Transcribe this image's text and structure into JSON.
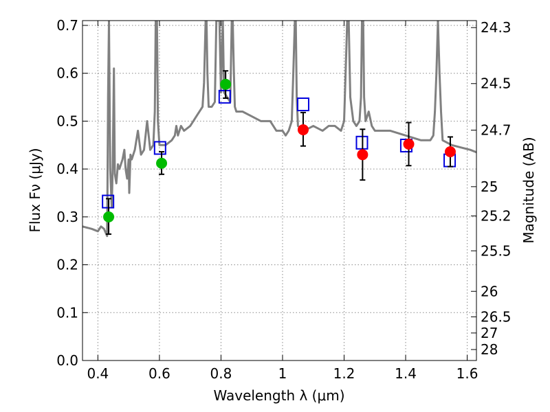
{
  "chart_data": {
    "type": "scatter",
    "title": "",
    "xlabel": "Wavelength  λ (μm)",
    "ylabel": "Flux  Fν  (μJy)",
    "ylabel_right": "Magnitude (AB)",
    "xlim": [
      0.35,
      1.63
    ],
    "ylim": [
      0.0,
      0.71
    ],
    "grid": true,
    "x_ticks": [
      0.4,
      0.6,
      0.8,
      1.0,
      1.2,
      1.4,
      1.6
    ],
    "x_tick_labels": [
      "0.4",
      "0.6",
      "0.8",
      "1",
      "1.2",
      "1.4",
      "1.6"
    ],
    "y_ticks": [
      0.0,
      0.1,
      0.2,
      0.3,
      0.4,
      0.5,
      0.6,
      0.7
    ],
    "y_tick_labels": [
      "0.0",
      "0.1",
      "0.2",
      "0.3",
      "0.4",
      "0.5",
      "0.6",
      "0.7"
    ],
    "right_ticks": [
      {
        "label": "24.3",
        "flux": 0.6954
      },
      {
        "label": "24.5",
        "flux": 0.5784
      },
      {
        "label": "24.7",
        "flux": 0.4812
      },
      {
        "label": "25",
        "flux": 0.3631
      },
      {
        "label": "25.2",
        "flux": 0.302
      },
      {
        "label": "25.5",
        "flux": 0.2291
      },
      {
        "label": "26",
        "flux": 0.1445
      },
      {
        "label": "26.5",
        "flux": 0.0912
      },
      {
        "label": "27",
        "flux": 0.0575
      },
      {
        "label": "28",
        "flux": 0.0229
      }
    ],
    "colors": {
      "model": "#808080",
      "green": "#00bb00",
      "red": "#ff0000",
      "square": "#0000dd",
      "error": "#000000"
    },
    "series": [
      {
        "kind": "line",
        "color": "#808080",
        "x": [
          0.35,
          0.38,
          0.4,
          0.41,
          0.42,
          0.43,
          0.431,
          0.433,
          0.436,
          0.44,
          0.445,
          0.448,
          0.452,
          0.455,
          0.46,
          0.465,
          0.47,
          0.48,
          0.486,
          0.49,
          0.495,
          0.5,
          0.502,
          0.506,
          0.51,
          0.52,
          0.53,
          0.54,
          0.55,
          0.56,
          0.57,
          0.58,
          0.585,
          0.588,
          0.59,
          0.592,
          0.595,
          0.6,
          0.62,
          0.64,
          0.65,
          0.655,
          0.66,
          0.665,
          0.67,
          0.68,
          0.7,
          0.72,
          0.74,
          0.745,
          0.75,
          0.753,
          0.756,
          0.76,
          0.77,
          0.78,
          0.785,
          0.79,
          0.795,
          0.8,
          0.803,
          0.806,
          0.81,
          0.82,
          0.83,
          0.835,
          0.838,
          0.842,
          0.845,
          0.85,
          0.87,
          0.9,
          0.93,
          0.96,
          0.98,
          1.0,
          1.01,
          1.02,
          1.03,
          1.035,
          1.04,
          1.043,
          1.046,
          1.05,
          1.07,
          1.1,
          1.13,
          1.15,
          1.17,
          1.19,
          1.2,
          1.205,
          1.21,
          1.215,
          1.22,
          1.23,
          1.24,
          1.25,
          1.255,
          1.258,
          1.262,
          1.265,
          1.27,
          1.28,
          1.29,
          1.3,
          1.35,
          1.4,
          1.45,
          1.48,
          1.49,
          1.495,
          1.5,
          1.505,
          1.51,
          1.515,
          1.52,
          1.55,
          1.58,
          1.61,
          1.63
        ],
        "y": [
          0.28,
          0.275,
          0.27,
          0.28,
          0.275,
          0.26,
          0.35,
          0.55,
          0.71,
          0.4,
          0.32,
          0.4,
          0.61,
          0.39,
          0.37,
          0.41,
          0.4,
          0.42,
          0.44,
          0.4,
          0.38,
          0.42,
          0.35,
          0.43,
          0.42,
          0.44,
          0.48,
          0.43,
          0.44,
          0.5,
          0.44,
          0.45,
          0.52,
          0.71,
          0.71,
          0.71,
          0.5,
          0.45,
          0.45,
          0.46,
          0.47,
          0.49,
          0.47,
          0.48,
          0.49,
          0.48,
          0.49,
          0.51,
          0.53,
          0.58,
          0.71,
          0.71,
          0.6,
          0.53,
          0.53,
          0.54,
          0.71,
          0.71,
          0.71,
          0.56,
          0.65,
          0.71,
          0.56,
          0.55,
          0.54,
          0.71,
          0.71,
          0.6,
          0.53,
          0.52,
          0.52,
          0.51,
          0.5,
          0.5,
          0.48,
          0.48,
          0.47,
          0.48,
          0.5,
          0.6,
          0.71,
          0.71,
          0.55,
          0.49,
          0.48,
          0.49,
          0.48,
          0.49,
          0.49,
          0.48,
          0.5,
          0.6,
          0.71,
          0.71,
          0.55,
          0.5,
          0.49,
          0.5,
          0.55,
          0.71,
          0.71,
          0.55,
          0.5,
          0.52,
          0.49,
          0.48,
          0.48,
          0.47,
          0.46,
          0.46,
          0.47,
          0.52,
          0.6,
          0.71,
          0.6,
          0.52,
          0.46,
          0.45,
          0.445,
          0.44,
          0.435
        ]
      },
      {
        "kind": "circles",
        "color": "#00bb00",
        "x": [
          0.435,
          0.607,
          0.815
        ],
        "y": [
          0.3,
          0.412,
          0.577
        ]
      },
      {
        "kind": "circles",
        "color": "#ff0000",
        "x": [
          1.067,
          1.26,
          1.41,
          1.545
        ],
        "y": [
          0.482,
          0.43,
          0.452,
          0.436
        ]
      },
      {
        "kind": "squares",
        "color": "#0000dd",
        "x": [
          0.433,
          0.602,
          0.812,
          1.067,
          1.258,
          1.402,
          1.543
        ],
        "y": [
          0.332,
          0.444,
          0.551,
          0.535,
          0.455,
          0.449,
          0.418
        ]
      },
      {
        "kind": "errorbars",
        "color": "#000000",
        "x": [
          0.435,
          0.607,
          0.815,
          1.067,
          1.26,
          1.41,
          1.545
        ],
        "y": [
          0.3,
          0.412,
          0.577,
          0.482,
          0.43,
          0.452,
          0.436
        ],
        "low": [
          0.264,
          0.389,
          0.548,
          0.448,
          0.377,
          0.407,
          0.405
        ],
        "high": [
          0.338,
          0.436,
          0.605,
          0.518,
          0.483,
          0.497,
          0.467
        ]
      }
    ]
  }
}
